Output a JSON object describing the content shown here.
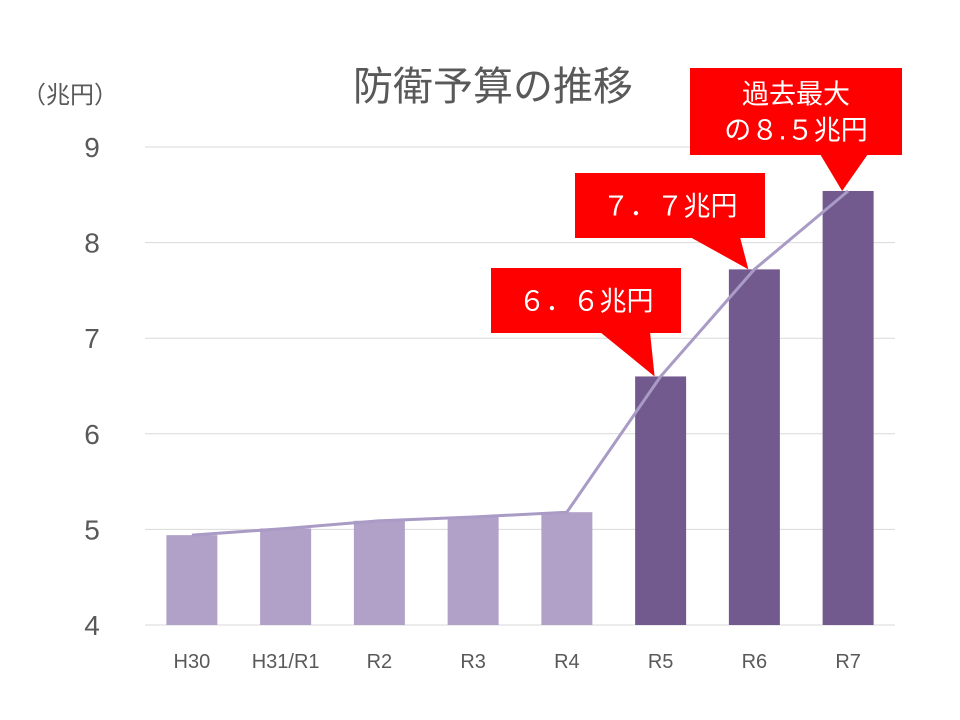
{
  "chart_data": {
    "type": "bar",
    "title": "防衛予算の推移",
    "ylabel": "（兆円）",
    "xlabel": "",
    "categories": [
      "H30",
      "H31/R1",
      "R2",
      "R3",
      "R4",
      "R5",
      "R6",
      "R7"
    ],
    "values": [
      4.94,
      5.01,
      5.09,
      5.13,
      5.18,
      6.6,
      7.72,
      8.54
    ],
    "ylim": [
      4,
      9
    ],
    "yticks": [
      "4",
      "5",
      "6",
      "7",
      "8",
      "9"
    ],
    "grid": true,
    "legend": "none",
    "overlay_line": "same values as bars",
    "colors": {
      "light_bar": "#b1a0c7",
      "dark_bar": "#725a8e",
      "line": "#a99bc5",
      "callout": "#ff0000"
    },
    "highlight_from_index": 5,
    "annotations": [
      {
        "lines": [
          "６．６兆円"
        ],
        "target": "R5"
      },
      {
        "lines": [
          "７．７兆円"
        ],
        "target": "R6"
      },
      {
        "lines": [
          "過去最大",
          "の８.５兆円"
        ],
        "target": "R7"
      }
    ]
  }
}
